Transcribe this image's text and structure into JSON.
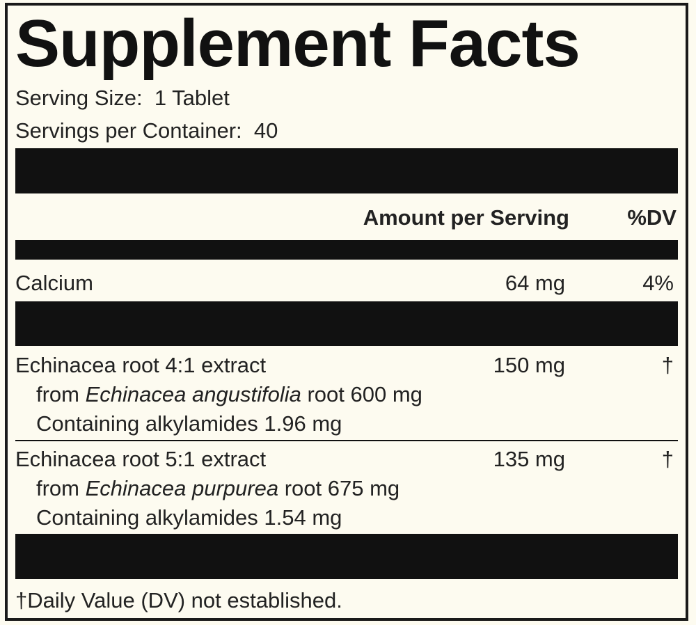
{
  "title": "Supplement Facts",
  "serving_size": {
    "label": "Serving Size:",
    "value": "1 Tablet"
  },
  "servings_per_container": {
    "label": "Servings per Container:",
    "value": "40"
  },
  "header": {
    "amount": "Amount per Serving",
    "dv": "%DV"
  },
  "rows": [
    {
      "lines": [
        {
          "text": "Calcium"
        }
      ],
      "amount": "64 mg",
      "dv": "4%"
    },
    {
      "lines": [
        {
          "text": "Echinacea root 4:1 extract"
        },
        {
          "prefix": "from ",
          "italic": "Echinacea angustifolia",
          "suffix": " root 600 mg"
        },
        {
          "text": "Containing alkylamides 1.96 mg"
        }
      ],
      "amount": "150 mg",
      "dv": "†"
    },
    {
      "lines": [
        {
          "text": "Echinacea root 5:1 extract"
        },
        {
          "prefix": "from ",
          "italic": "Echinacea purpurea",
          "suffix": " root 675 mg"
        },
        {
          "text": "Containing alkylamides 1.54 mg"
        }
      ],
      "amount": "135 mg",
      "dv": "†"
    }
  ],
  "footnote": "†Daily Value (DV) not established."
}
